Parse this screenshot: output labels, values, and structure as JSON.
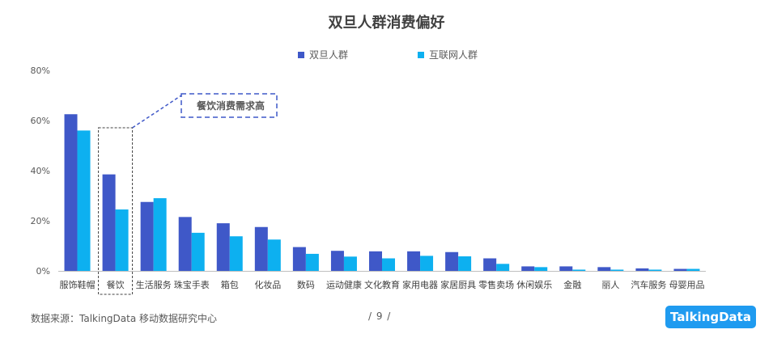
{
  "chart_data": {
    "type": "bar",
    "title": "双旦人群消费偏好",
    "categories": [
      "服饰鞋帽",
      "餐饮",
      "生活服务",
      "珠宝手表",
      "箱包",
      "化妆品",
      "数码",
      "运动健康",
      "文化教育",
      "家用电器",
      "家居厨具",
      "零售卖场",
      "休闲娱乐",
      "金融",
      "丽人",
      "汽车服务",
      "母婴用品"
    ],
    "series": [
      {
        "name": "双旦人群",
        "color": "#3f58c8",
        "values": [
          62.5,
          38.5,
          27.5,
          21.5,
          19.0,
          17.5,
          9.5,
          8.0,
          7.8,
          7.8,
          7.5,
          5.0,
          1.8,
          1.8,
          1.5,
          1.0,
          0.8
        ]
      },
      {
        "name": "互联网人群",
        "color": "#0db0f0",
        "values": [
          56.0,
          24.5,
          29.0,
          15.2,
          13.8,
          12.5,
          6.8,
          5.7,
          5.0,
          6.0,
          5.8,
          2.8,
          1.5,
          0.5,
          0.5,
          0.5,
          0.8
        ]
      }
    ],
    "yticks": [
      "0%",
      "20%",
      "40%",
      "60%",
      "80%"
    ],
    "ylim": [
      0,
      80
    ],
    "grid": false,
    "legend_position": "top-center",
    "annotation": "餐饮消费需求高"
  },
  "footer": {
    "source": "数据来源：TalkingData 移动数据研究中心",
    "page": "/ 9 /",
    "logo": "TalkingData"
  }
}
